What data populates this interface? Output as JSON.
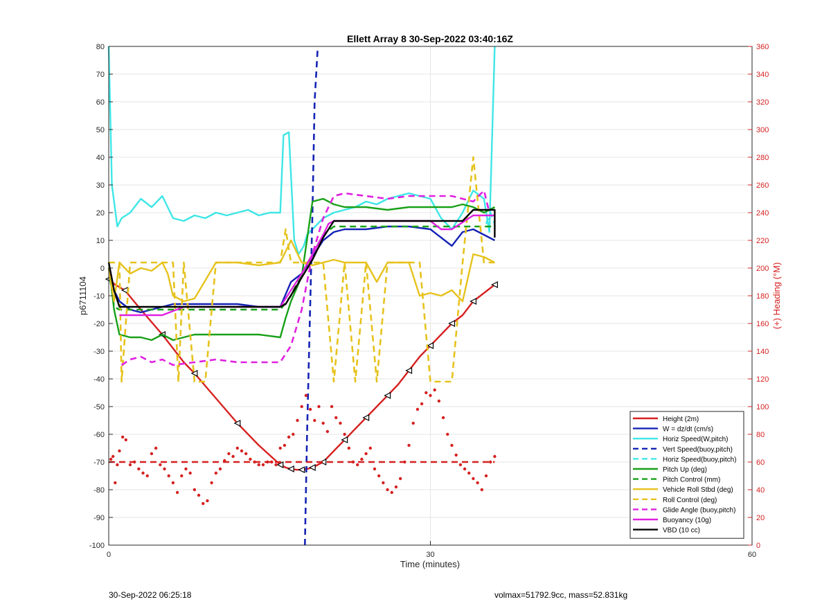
{
  "chart_data": {
    "type": "line",
    "title": "Ellett Array 8 30-Sep-2022 03:40:16Z",
    "xlabel": "Time (minutes)",
    "ylabel": "p6711104",
    "y2label": "(+) Heading (°M)",
    "xlim": [
      0,
      60
    ],
    "ylim": [
      -100,
      80
    ],
    "y2lim": [
      0,
      360
    ],
    "xticks": [
      0,
      30,
      60
    ],
    "yticks": [
      80,
      70,
      60,
      50,
      40,
      30,
      20,
      10,
      0,
      -10,
      -20,
      -30,
      -40,
      -50,
      -60,
      -70,
      -80,
      -90,
      -100
    ],
    "y2ticks": [
      360,
      340,
      320,
      300,
      280,
      260,
      240,
      220,
      200,
      180,
      160,
      140,
      120,
      100,
      80,
      60,
      40,
      20,
      0
    ],
    "grid": true,
    "legend_position": "bottom-right",
    "colors": {
      "red": "#d62020",
      "blue": "#1423b4",
      "cyan": "#3ee6e6",
      "green": "#18a018",
      "yellow": "#e6c21c",
      "magenta": "#e020e0",
      "black": "#000000"
    },
    "series": [
      {
        "name": "Height (2m)",
        "color": "red",
        "dash": false,
        "marker": "triangle",
        "axis": "left",
        "x": [
          0,
          0.6,
          1.5,
          3,
          5,
          7,
          8,
          10,
          12,
          14,
          16,
          16.5,
          17,
          17.5,
          18,
          18.5,
          19,
          19.5,
          20,
          21,
          22,
          23,
          24,
          25,
          26,
          27,
          28,
          29,
          30,
          31,
          32,
          33,
          34,
          35,
          36
        ],
        "y": [
          -4,
          -6,
          -8,
          -15,
          -24,
          -34,
          -38,
          -47,
          -56,
          -64,
          -71,
          -72,
          -72.5,
          -72.8,
          -72.8,
          -72.5,
          -72,
          -71,
          -70,
          -66,
          -62,
          -58,
          -54,
          -50,
          -46,
          -42,
          -37,
          -32,
          -28,
          -24,
          -20,
          -17,
          -12,
          -9,
          -6
        ]
      },
      {
        "name": "W = dz/dt (cm/s)",
        "color": "blue",
        "dash": false,
        "marker": "",
        "axis": "left",
        "x": [
          0,
          0.5,
          1,
          2,
          3,
          4,
          5,
          6,
          8,
          10,
          12,
          14,
          16,
          17,
          18,
          19,
          20,
          21,
          22,
          24,
          26,
          28,
          30,
          31,
          32,
          33,
          34,
          35,
          36
        ],
        "y": [
          2,
          -8,
          -12,
          -15,
          -16,
          -15,
          -14,
          -13,
          -13,
          -13,
          -13,
          -14,
          -14,
          -5,
          -2,
          4,
          10,
          13,
          14,
          14,
          15,
          15,
          14,
          11,
          8,
          13,
          14,
          12,
          10
        ]
      },
      {
        "name": "Horiz Speed(W,pitch)",
        "color": "cyan",
        "dash": false,
        "marker": "",
        "axis": "left",
        "x": [
          0,
          0.3,
          0.8,
          1.2,
          2,
          3,
          4,
          5,
          6,
          7,
          8,
          9,
          10,
          11,
          12,
          13,
          14,
          15,
          16,
          16.3,
          16.8,
          17.3,
          17.7,
          18.2,
          18.5,
          19,
          20,
          21,
          22,
          23,
          24,
          25,
          26,
          27,
          28,
          29,
          30,
          31,
          32,
          33,
          34,
          35,
          35.5,
          36
        ],
        "y": [
          80,
          30,
          15,
          18,
          20,
          25,
          22,
          26,
          18,
          17,
          19,
          18,
          20,
          19,
          20,
          21,
          19,
          20,
          20,
          48,
          49,
          10,
          5,
          8,
          12,
          14,
          18,
          20,
          21,
          22,
          24,
          23,
          25,
          26,
          27,
          26,
          25,
          18,
          14,
          20,
          28,
          25,
          13,
          80
        ]
      },
      {
        "name": "Vert Speed(buoy,pitch)",
        "color": "blue",
        "dash": true,
        "marker": "",
        "axis": "left",
        "x": [
          18.3,
          18.5,
          19.0,
          19.2,
          19.5
        ],
        "y": [
          -100,
          -60,
          20,
          60,
          80
        ]
      },
      {
        "name": "Horiz Speed(buoy,pitch)",
        "color": "cyan",
        "dash": true,
        "marker": "",
        "axis": "left",
        "x": [
          35.2,
          35.6,
          36
        ],
        "y": [
          16,
          20,
          16
        ]
      },
      {
        "name": "Pitch Up (deg)",
        "color": "green",
        "dash": false,
        "marker": "",
        "axis": "left",
        "x": [
          0,
          0.5,
          1,
          2,
          3,
          4,
          5,
          6,
          8,
          10,
          12,
          14,
          16,
          16.5,
          17,
          18,
          19,
          20,
          21,
          22,
          24,
          26,
          28,
          30,
          32,
          33,
          34,
          35,
          36
        ],
        "y": [
          2,
          -15,
          -24,
          -25,
          -25,
          -26,
          -24,
          -26,
          -24,
          -24,
          -24,
          -24,
          -25,
          -18,
          -12,
          -3,
          24,
          25,
          23,
          22,
          22,
          21,
          22,
          22,
          22,
          23,
          22,
          20,
          22
        ]
      },
      {
        "name": "Pitch Control (mm)",
        "color": "green",
        "dash": true,
        "marker": "",
        "axis": "left",
        "x": [
          0,
          0.5,
          1,
          16,
          17,
          18,
          19,
          20,
          21,
          22,
          36
        ],
        "y": [
          0,
          -14,
          -15,
          -15,
          -10,
          -2,
          5,
          12,
          15,
          15,
          15
        ]
      },
      {
        "name": "Vehicle Roll Stbd (deg)",
        "color": "yellow",
        "dash": false,
        "marker": "",
        "axis": "left",
        "x": [
          0,
          0.5,
          1,
          2,
          3,
          4,
          5,
          5.5,
          6,
          7,
          8,
          10,
          12,
          14,
          16,
          17,
          18,
          19,
          20,
          21,
          22,
          24,
          25,
          26,
          27,
          28,
          29,
          30,
          31,
          32,
          33,
          34,
          35,
          36
        ],
        "y": [
          0,
          -12,
          2,
          -2,
          0,
          -1,
          2,
          -2,
          -10,
          -12,
          -11,
          2,
          2,
          1,
          2,
          10,
          2,
          1,
          2,
          3,
          2,
          2,
          -5,
          2,
          2,
          2,
          -10,
          -9,
          -10,
          -8,
          -12,
          5,
          4,
          2
        ]
      },
      {
        "name": "Roll Control (deg)",
        "color": "yellow",
        "dash": true,
        "marker": "",
        "axis": "left",
        "x": [
          0,
          1,
          1.2,
          2,
          5,
          6,
          6.5,
          7,
          8,
          8.5,
          9,
          10,
          16,
          16.5,
          17,
          18,
          20,
          21,
          22,
          23,
          24,
          25,
          26,
          27,
          28,
          29,
          30,
          31,
          32,
          33,
          34,
          35,
          36
        ],
        "y": [
          2,
          2,
          -41,
          2,
          2,
          2,
          -41,
          2,
          -41,
          -41,
          -41,
          2,
          2,
          14,
          2,
          2,
          2,
          -41,
          2,
          -41,
          2,
          -41,
          2,
          2,
          2,
          2,
          -41,
          -41,
          -41,
          2,
          40,
          2,
          2
        ]
      },
      {
        "name": "Glide Angle (buoy,pitch)",
        "color": "magenta",
        "dash": true,
        "marker": "",
        "axis": "left",
        "x": [
          1.2,
          2,
          3,
          4,
          5,
          6,
          8,
          10,
          12,
          14,
          16,
          17,
          18,
          19,
          20,
          21,
          22,
          24,
          26,
          28,
          30,
          32,
          34,
          35,
          35.5
        ],
        "y": [
          -35,
          -33,
          -32,
          -34,
          -33,
          -35,
          -34,
          -33,
          -34,
          -34,
          -34,
          -28,
          -15,
          5,
          18,
          26,
          27,
          26,
          25,
          26,
          26,
          26,
          24,
          28,
          20
        ]
      },
      {
        "name": "Buoyancy (10g)",
        "color": "magenta",
        "dash": false,
        "marker": "",
        "axis": "left",
        "x": [
          1,
          5,
          7,
          16,
          17,
          18,
          19,
          20,
          20.5,
          21,
          30,
          31,
          32,
          34,
          36
        ],
        "y": [
          -17,
          -17,
          -14,
          -14,
          -8,
          -2,
          5,
          12,
          16,
          17,
          17,
          14,
          14,
          19,
          19
        ]
      },
      {
        "name": "VBD (10 cc)",
        "color": "black",
        "dash": false,
        "marker": "",
        "axis": "left",
        "x": [
          0,
          0.5,
          1,
          5,
          6,
          16,
          16.5,
          19,
          20,
          20.5,
          21,
          33,
          34,
          36,
          36
        ],
        "y": [
          2,
          -8,
          -14,
          -14,
          -14,
          -14,
          -13,
          3,
          11,
          14,
          17,
          17,
          21,
          21,
          11
        ]
      },
      {
        "name": "",
        "color": "red",
        "dash": true,
        "marker": "",
        "axis": "left",
        "x": [
          0,
          36
        ],
        "y": [
          -70,
          -70
        ]
      }
    ],
    "heading": {
      "color": "red",
      "axis": "right",
      "x": [
        0.2,
        0.4,
        0.6,
        0.8,
        1.0,
        1.3,
        1.6,
        2.0,
        2.4,
        2.8,
        3.2,
        3.6,
        4.0,
        4.4,
        4.8,
        5.2,
        5.6,
        6.0,
        6.4,
        6.8,
        7.2,
        7.6,
        8.0,
        8.4,
        8.8,
        9.2,
        9.6,
        10.0,
        10.4,
        10.8,
        11.2,
        11.6,
        12.0,
        12.4,
        12.8,
        13.2,
        13.6,
        14.0,
        14.4,
        14.8,
        15.2,
        15.6,
        16.0,
        16.4,
        16.8,
        17.2,
        17.6,
        18.0,
        18.4,
        18.8,
        19.2,
        19.6,
        20.0,
        20.4,
        20.8,
        21.2,
        21.6,
        22.0,
        22.4,
        22.8,
        23.2,
        23.6,
        24.0,
        24.4,
        24.8,
        25.2,
        25.6,
        26.0,
        26.4,
        26.8,
        27.2,
        27.6,
        28.0,
        28.4,
        28.8,
        29.2,
        29.6,
        30.0,
        30.4,
        30.8,
        31.2,
        31.6,
        32.0,
        32.4,
        32.8,
        33.2,
        33.6,
        34.0,
        34.4,
        34.8,
        35.2,
        35.6,
        36.0
      ],
      "y": [
        62,
        64,
        45,
        58,
        68,
        78,
        76,
        58,
        60,
        55,
        52,
        50,
        66,
        70,
        58,
        55,
        50,
        45,
        38,
        50,
        55,
        52,
        40,
        36,
        30,
        32,
        45,
        52,
        55,
        61,
        66,
        64,
        70,
        68,
        66,
        62,
        60,
        58,
        58,
        60,
        60,
        58,
        70,
        72,
        78,
        80,
        90,
        100,
        108,
        98,
        90,
        100,
        88,
        82,
        100,
        92,
        88,
        80,
        70,
        60,
        58,
        62,
        66,
        70,
        55,
        50,
        45,
        40,
        38,
        42,
        48,
        60,
        72,
        88,
        98,
        102,
        110,
        108,
        112,
        104,
        92,
        80,
        72,
        65,
        58,
        55,
        52,
        48,
        45,
        40,
        50,
        60,
        64
      ]
    }
  },
  "footer": {
    "left": "30-Sep-2022 06:25:18",
    "right": "volmax=51792.9cc, mass=52.831kg"
  }
}
